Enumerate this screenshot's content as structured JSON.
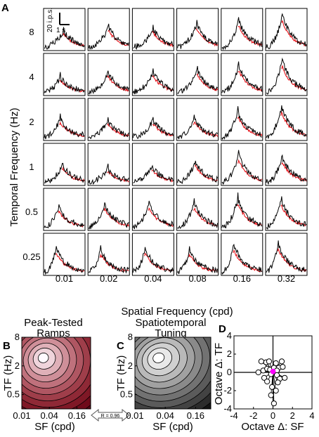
{
  "figure": {
    "panel_a": {
      "letter": "A",
      "ylabel": "Temporal Frequency (Hz)",
      "xlabel": "Spatial Frequency (cpd)",
      "scale_bar": {
        "y_text": "20 i.p.s.",
        "x_text": "1 s"
      },
      "row_labels": [
        "8",
        "4",
        "2",
        "1",
        "0.5",
        "0.25"
      ],
      "col_labels": [
        "0.01",
        "0.02",
        "0.04",
        "0.08",
        "0.16",
        "0.32"
      ],
      "series_colors": {
        "measured": "#000000",
        "predicted": "#e8141b"
      }
    },
    "panel_b": {
      "letter": "B",
      "title_lines": [
        "Peak-Tested",
        "Ramps"
      ],
      "xlabel": "SF (cpd)",
      "ylabel": "TF (Hz)",
      "xticks": [
        "0.01",
        "0.04",
        "0.16"
      ],
      "yticks": [
        "8",
        "2",
        "0.5"
      ],
      "colormap": "red"
    },
    "panel_c": {
      "letter": "C",
      "title_lines": [
        "Spatiotemporal",
        "Tuning"
      ],
      "xlabel": "SF (cpd)",
      "ylabel": "TF (Hz)",
      "xticks": [
        "0.01",
        "0.04",
        "0.16"
      ],
      "yticks": [
        "8",
        "2",
        "0.5"
      ],
      "colormap": "gray"
    },
    "correlation_label": "R = 0.96",
    "panel_d": {
      "letter": "D",
      "xlabel": "Octave Δ: SF",
      "ylabel": "Octave Δ: TF",
      "xticks": [
        "-4",
        "-2",
        "0",
        "2",
        "4"
      ],
      "yticks": [
        "4",
        "2",
        "0",
        "-2",
        "-4"
      ],
      "marker_color": "#ff00ff"
    }
  },
  "chart_data": [
    {
      "type": "line",
      "title": "",
      "xlabel": "Spatial Frequency (cpd)",
      "ylabel": "Temporal Frequency (Hz)",
      "grid_rows_tf_hz": [
        8,
        4,
        2,
        1,
        0.5,
        0.25
      ],
      "grid_cols_sf_cpd": [
        0.01,
        0.02,
        0.04,
        0.08,
        0.16,
        0.32
      ],
      "note_units": "each small panel is firing rate over time",
      "peak_rate_ips": [
        [
          22,
          26,
          24,
          30,
          34,
          40
        ],
        [
          20,
          26,
          26,
          28,
          34,
          40
        ],
        [
          24,
          22,
          22,
          24,
          32,
          38
        ],
        [
          22,
          18,
          20,
          26,
          34,
          32
        ],
        [
          26,
          30,
          30,
          30,
          36,
          34
        ],
        [
          30,
          28,
          30,
          28,
          34,
          36
        ]
      ],
      "peak_time_fraction": [
        [
          0.48,
          0.5,
          0.5,
          0.48,
          0.42,
          0.4
        ],
        [
          0.4,
          0.48,
          0.5,
          0.5,
          0.42,
          0.4
        ],
        [
          0.4,
          0.48,
          0.5,
          0.42,
          0.4,
          0.38
        ],
        [
          0.46,
          0.48,
          0.48,
          0.45,
          0.42,
          0.4
        ],
        [
          0.36,
          0.4,
          0.4,
          0.42,
          0.4,
          0.38
        ],
        [
          0.3,
          0.3,
          0.3,
          0.3,
          0.3,
          0.3
        ]
      ]
    },
    {
      "type": "heatmap",
      "title": "Peak-Tested Ramps",
      "xlabel": "SF (cpd)",
      "ylabel": "TF (Hz)",
      "x": [
        0.01,
        0.04,
        0.16
      ],
      "y": [
        8,
        2,
        0.5
      ],
      "xlim": [
        0.01,
        0.32
      ],
      "ylim": [
        0.25,
        8
      ],
      "peak": {
        "sf": 0.025,
        "tf": 4
      },
      "levels": 10
    },
    {
      "type": "heatmap",
      "title": "Spatiotemporal Tuning",
      "xlabel": "SF (cpd)",
      "ylabel": "TF (Hz)",
      "x": [
        0.01,
        0.04,
        0.16
      ],
      "y": [
        8,
        2,
        0.5
      ],
      "xlim": [
        0.01,
        0.32
      ],
      "ylim": [
        0.25,
        8
      ],
      "peak": {
        "sf": 0.025,
        "tf": 4
      },
      "levels": 10
    },
    {
      "type": "scatter",
      "title": "",
      "xlabel": "Octave Δ: SF",
      "ylabel": "Octave Δ: TF",
      "xlim": [
        -4,
        4
      ],
      "ylim": [
        -4,
        4
      ],
      "points": [
        [
          -1.2,
          1.2
        ],
        [
          -0.7,
          1.1
        ],
        [
          -0.4,
          1.2
        ],
        [
          0.3,
          1.0
        ],
        [
          0.9,
          1.2
        ],
        [
          -1.5,
          0.0
        ],
        [
          -1.0,
          0.2
        ],
        [
          -0.6,
          0.4
        ],
        [
          -0.3,
          0.3
        ],
        [
          0.1,
          0.5
        ],
        [
          0.6,
          0.5
        ],
        [
          1.0,
          0.6
        ],
        [
          0.4,
          0.2
        ],
        [
          -0.2,
          -0.2
        ],
        [
          0.4,
          -0.3
        ],
        [
          -0.9,
          -0.6
        ],
        [
          -0.6,
          -1.0
        ],
        [
          0.7,
          -0.7
        ],
        [
          1.2,
          -0.6
        ],
        [
          0.5,
          -1.1
        ],
        [
          -0.1,
          -1.6
        ],
        [
          0.3,
          -2.0
        ],
        [
          -0.2,
          -2.5
        ],
        [
          0.1,
          -3.4
        ]
      ],
      "mean": [
        0.0,
        0.1
      ],
      "mean_error": [
        0.15,
        0.2
      ]
    }
  ]
}
